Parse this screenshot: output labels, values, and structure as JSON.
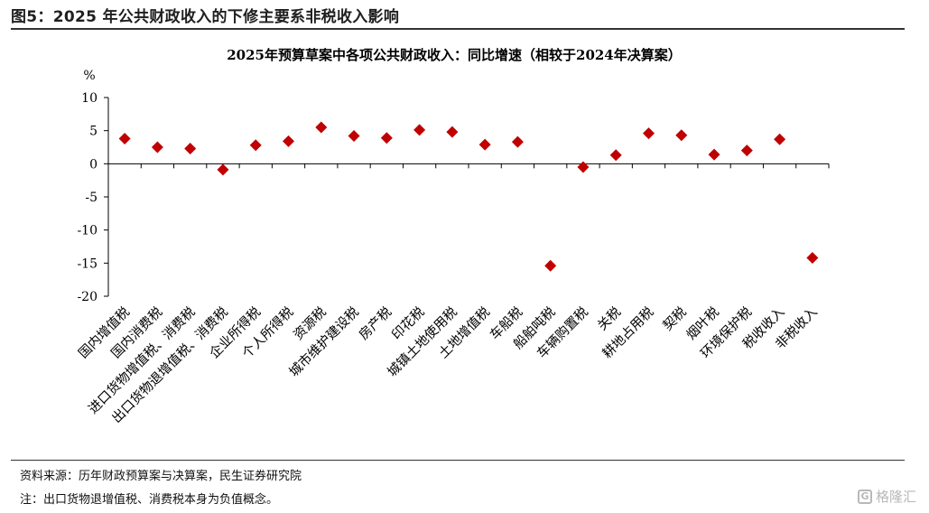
{
  "figure_title": "图5：2025 年公共财政收入的下修主要系非税收入影响",
  "source": "资料来源：历年财政预算案与决算案，民生证券研究院",
  "note": "注：出口货物退增值税、消费税本身为负值概念。",
  "watermark": "格隆汇",
  "colors": {
    "marker": "#C00000",
    "axis": "#000000",
    "rule": "#333333"
  },
  "chart_data": {
    "type": "scatter",
    "title": "2025年预算草案中各项公共财政收入：同比增速（相较于2024年决算案）",
    "ylabel": "%",
    "xlabel": "",
    "ylim": [
      -20,
      10
    ],
    "yticks": [
      10,
      5,
      0,
      -5,
      -10,
      -15,
      -20
    ],
    "grid": false,
    "categories": [
      "国内增值税",
      "国内消费税",
      "进口货物增值税、消费税",
      "出口货物退增值税、消费税",
      "企业所得税",
      "个人所得税",
      "资源税",
      "城市维护建设税",
      "房产税",
      "印花税",
      "城镇土地使用税",
      "土地增值税",
      "车船税",
      "船舶吨税",
      "车辆购置税",
      "关税",
      "耕地占用税",
      "契税",
      "烟叶税",
      "环境保护税",
      "税收收入",
      "非税收入"
    ],
    "values": [
      3.8,
      2.5,
      2.3,
      -0.9,
      2.8,
      3.4,
      5.5,
      4.2,
      3.9,
      5.1,
      4.8,
      2.9,
      3.3,
      -15.4,
      -0.5,
      1.3,
      4.6,
      4.3,
      1.4,
      2.0,
      3.7,
      -14.2
    ]
  }
}
